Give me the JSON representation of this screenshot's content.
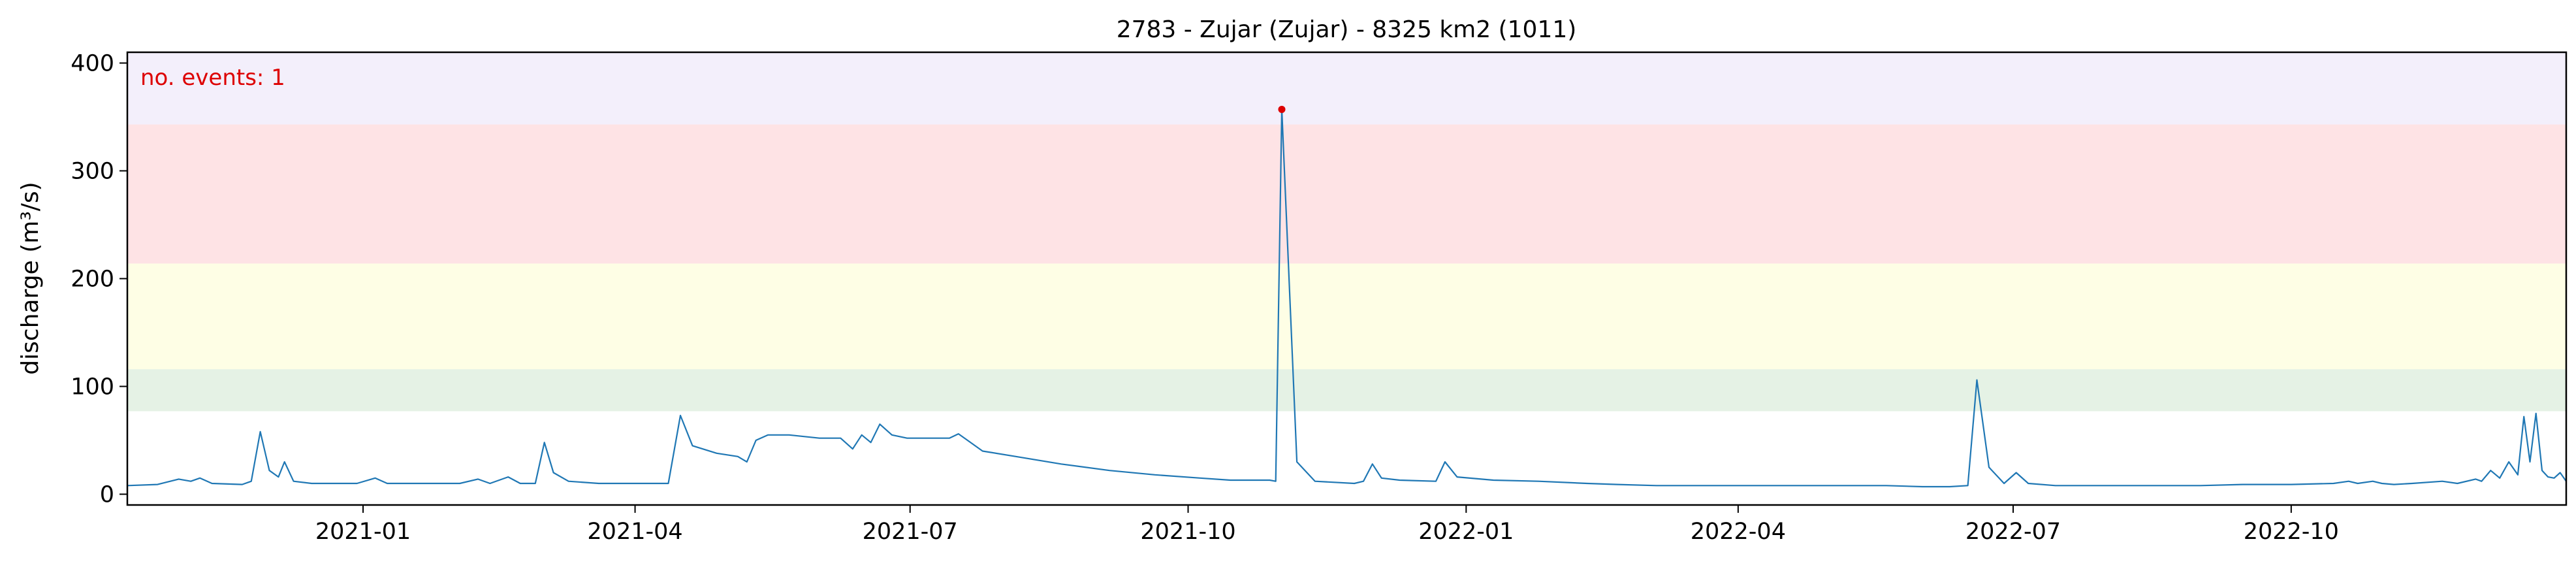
{
  "chart_data": {
    "type": "line",
    "title": "2783 - Zujar (Zujar) - 8325 km2 (1011)",
    "xlabel": "",
    "ylabel": "discharge (m³/s)",
    "xlim": [
      "2020-10-15",
      "2022-12-31"
    ],
    "ylim": [
      -10,
      410
    ],
    "x_ticks": [
      "2021-01",
      "2021-04",
      "2021-07",
      "2021-10",
      "2022-01",
      "2022-04",
      "2022-07",
      "2022-10"
    ],
    "y_ticks": [
      0,
      100,
      200,
      300,
      400
    ],
    "grid": false,
    "threshold_bands": [
      {
        "from": 77,
        "to": 116,
        "color": "#e5f2e5"
      },
      {
        "from": 116,
        "to": 214,
        "color": "#fefee5"
      },
      {
        "from": 214,
        "to": 343,
        "color": "#fee3e5"
      },
      {
        "from": 343,
        "to": 410,
        "color": "#f3effb"
      }
    ],
    "annotation": {
      "text": "no. events: 1",
      "color": "#dd0000"
    },
    "event_marker": {
      "x": "2021-11-01",
      "y": 357,
      "color": "#dd0000"
    },
    "series": [
      {
        "color": "#1f77b4",
        "points": [
          [
            "2020-10-15",
            8
          ],
          [
            "2020-10-25",
            9
          ],
          [
            "2020-11-01",
            14
          ],
          [
            "2020-11-05",
            12
          ],
          [
            "2020-11-08",
            15
          ],
          [
            "2020-11-12",
            10
          ],
          [
            "2020-11-22",
            9
          ],
          [
            "2020-11-25",
            12
          ],
          [
            "2020-11-28",
            58
          ],
          [
            "2020-12-01",
            22
          ],
          [
            "2020-12-04",
            16
          ],
          [
            "2020-12-06",
            30
          ],
          [
            "2020-12-09",
            12
          ],
          [
            "2020-12-15",
            10
          ],
          [
            "2020-12-30",
            10
          ],
          [
            "2021-01-05",
            15
          ],
          [
            "2021-01-09",
            10
          ],
          [
            "2021-01-20",
            10
          ],
          [
            "2021-02-02",
            10
          ],
          [
            "2021-02-08",
            14
          ],
          [
            "2021-02-12",
            10
          ],
          [
            "2021-02-18",
            16
          ],
          [
            "2021-02-22",
            10
          ],
          [
            "2021-02-27",
            10
          ],
          [
            "2021-03-02",
            48
          ],
          [
            "2021-03-05",
            20
          ],
          [
            "2021-03-10",
            12
          ],
          [
            "2021-03-20",
            10
          ],
          [
            "2021-04-05",
            10
          ],
          [
            "2021-04-12",
            10
          ],
          [
            "2021-04-16",
            73
          ],
          [
            "2021-04-20",
            45
          ],
          [
            "2021-04-28",
            38
          ],
          [
            "2021-05-05",
            35
          ],
          [
            "2021-05-08",
            30
          ],
          [
            "2021-05-11",
            50
          ],
          [
            "2021-05-15",
            55
          ],
          [
            "2021-05-22",
            55
          ],
          [
            "2021-06-01",
            52
          ],
          [
            "2021-06-08",
            52
          ],
          [
            "2021-06-12",
            42
          ],
          [
            "2021-06-15",
            55
          ],
          [
            "2021-06-18",
            48
          ],
          [
            "2021-06-21",
            65
          ],
          [
            "2021-06-25",
            55
          ],
          [
            "2021-06-30",
            52
          ],
          [
            "2021-07-05",
            52
          ],
          [
            "2021-07-10",
            52
          ],
          [
            "2021-07-14",
            52
          ],
          [
            "2021-07-17",
            56
          ],
          [
            "2021-07-20",
            50
          ],
          [
            "2021-07-25",
            40
          ],
          [
            "2021-08-05",
            35
          ],
          [
            "2021-08-20",
            28
          ],
          [
            "2021-09-05",
            22
          ],
          [
            "2021-09-20",
            18
          ],
          [
            "2021-10-05",
            15
          ],
          [
            "2021-10-15",
            13
          ],
          [
            "2021-10-28",
            13
          ],
          [
            "2021-10-30",
            12
          ],
          [
            "2021-11-01",
            357
          ],
          [
            "2021-11-06",
            30
          ],
          [
            "2021-11-12",
            12
          ],
          [
            "2021-11-25",
            10
          ],
          [
            "2021-11-28",
            12
          ],
          [
            "2021-12-01",
            28
          ],
          [
            "2021-12-04",
            15
          ],
          [
            "2021-12-10",
            13
          ],
          [
            "2021-12-22",
            12
          ],
          [
            "2021-12-25",
            30
          ],
          [
            "2021-12-29",
            16
          ],
          [
            "2022-01-10",
            13
          ],
          [
            "2022-01-25",
            12
          ],
          [
            "2022-02-10",
            10
          ],
          [
            "2022-02-20",
            9
          ],
          [
            "2022-03-05",
            8
          ],
          [
            "2022-03-15",
            8
          ],
          [
            "2022-04-01",
            8
          ],
          [
            "2022-04-15",
            8
          ],
          [
            "2022-05-01",
            8
          ],
          [
            "2022-05-10",
            8
          ],
          [
            "2022-05-20",
            8
          ],
          [
            "2022-06-01",
            7
          ],
          [
            "2022-06-10",
            7
          ],
          [
            "2022-06-16",
            8
          ],
          [
            "2022-06-19",
            106
          ],
          [
            "2022-06-23",
            25
          ],
          [
            "2022-06-28",
            10
          ],
          [
            "2022-07-02",
            20
          ],
          [
            "2022-07-06",
            10
          ],
          [
            "2022-07-15",
            8
          ],
          [
            "2022-08-01",
            8
          ],
          [
            "2022-08-15",
            8
          ],
          [
            "2022-09-01",
            8
          ],
          [
            "2022-09-15",
            9
          ],
          [
            "2022-10-01",
            9
          ],
          [
            "2022-10-15",
            10
          ],
          [
            "2022-10-20",
            12
          ],
          [
            "2022-10-23",
            10
          ],
          [
            "2022-10-28",
            12
          ],
          [
            "2022-10-31",
            10
          ],
          [
            "2022-11-04",
            9
          ],
          [
            "2022-11-10",
            10
          ],
          [
            "2022-11-20",
            12
          ],
          [
            "2022-11-25",
            10
          ],
          [
            "2022-12-01",
            14
          ],
          [
            "2022-12-03",
            12
          ],
          [
            "2022-12-06",
            22
          ],
          [
            "2022-12-09",
            15
          ],
          [
            "2022-12-12",
            30
          ],
          [
            "2022-12-15",
            18
          ],
          [
            "2022-12-17",
            72
          ],
          [
            "2022-12-19",
            30
          ],
          [
            "2022-12-21",
            75
          ],
          [
            "2022-12-23",
            22
          ],
          [
            "2022-12-25",
            16
          ],
          [
            "2022-12-27",
            15
          ],
          [
            "2022-12-29",
            20
          ],
          [
            "2022-12-31",
            12
          ]
        ]
      }
    ]
  }
}
